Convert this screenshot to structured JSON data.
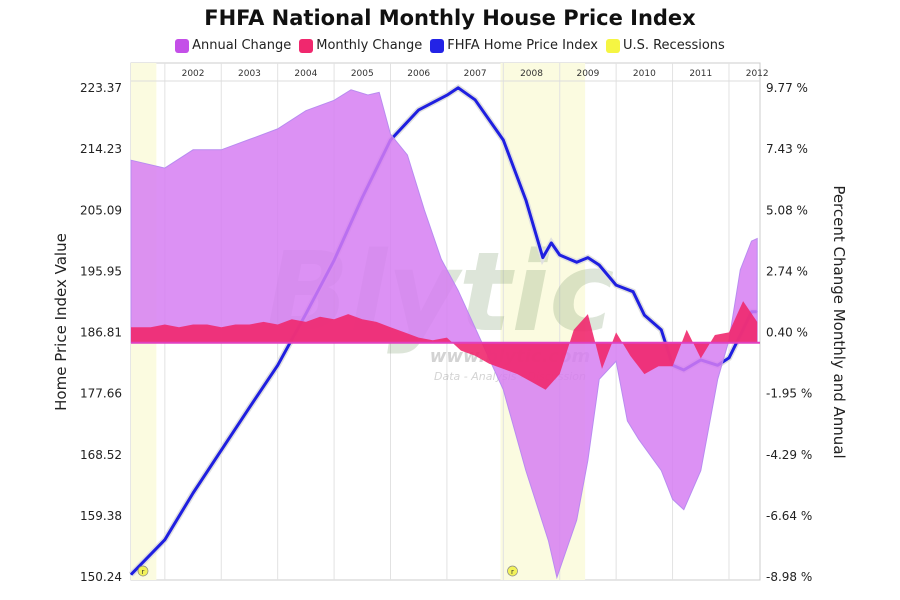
{
  "chart_data": {
    "type": "line",
    "title": "FHFA National Monthly House Price Index",
    "legend": [
      {
        "name": "Annual Change",
        "color": "#c44fe8"
      },
      {
        "name": "Monthly Change",
        "color": "#f0286e"
      },
      {
        "name": "FHFA Home Price Index",
        "color": "#2323e6"
      },
      {
        "name": "U.S. Recessions",
        "color": "#f5f542"
      }
    ],
    "legend_position": "top",
    "x_tick_labels": [
      "2002",
      "2003",
      "2004",
      "2005",
      "2006",
      "2007",
      "2008",
      "2009",
      "2010",
      "2011",
      "2012"
    ],
    "xlim": [
      2001.4,
      2012.55
    ],
    "ylabel_left": "Home Price Index Value",
    "ylabel_right": "Percent Change Monthly and Annual",
    "ylim_left": [
      150.24,
      223.37
    ],
    "ylim_right": [
      -8.98,
      9.77
    ],
    "y_ticks_left": [
      "223.37",
      "214.23",
      "205.09",
      "195.95",
      "186.81",
      "177.66",
      "168.52",
      "159.38",
      "150.24"
    ],
    "y_ticks_right": [
      "9.77 %",
      "7.43 %",
      "5.08 %",
      "2.74 %",
      "0.40 %",
      "-1.95 %",
      "-4.29 %",
      "-6.64 %",
      "-8.98 %"
    ],
    "grid": true,
    "recessions": [
      [
        2001.4,
        2001.85
      ],
      [
        2007.95,
        2009.45
      ]
    ],
    "recession_marker_label": "r",
    "series": [
      {
        "name": "FHFA Home Price Index",
        "axis": "left",
        "type": "line",
        "x": [
          2001.4,
          2002.0,
          2002.5,
          2003.0,
          2003.5,
          2004.0,
          2004.5,
          2005.0,
          2005.5,
          2006.0,
          2006.5,
          2007.0,
          2007.2,
          2007.5,
          2008.0,
          2008.4,
          2008.7,
          2008.85,
          2009.0,
          2009.3,
          2009.5,
          2009.7,
          2010.0,
          2010.3,
          2010.5,
          2010.8,
          2011.0,
          2011.2,
          2011.5,
          2011.8,
          2012.0,
          2012.2,
          2012.4,
          2012.5
        ],
        "y": [
          150.6,
          155.8,
          162.8,
          169.2,
          175.6,
          181.9,
          189.6,
          197.6,
          207.0,
          215.6,
          220.1,
          222.3,
          223.4,
          221.6,
          215.6,
          206.6,
          198.0,
          200.2,
          198.4,
          197.3,
          198.0,
          196.9,
          193.9,
          192.9,
          189.4,
          187.2,
          181.9,
          181.2,
          182.7,
          181.9,
          183.0,
          186.4,
          189.9,
          189.9
        ]
      },
      {
        "name": "Annual Change",
        "axis": "right",
        "type": "area",
        "x": [
          2001.4,
          2002.0,
          2002.5,
          2003.0,
          2003.5,
          2004.0,
          2004.5,
          2005.0,
          2005.3,
          2005.6,
          2005.8,
          2006.0,
          2006.3,
          2006.6,
          2006.9,
          2007.2,
          2007.6,
          2008.0,
          2008.4,
          2008.8,
          2008.95,
          2009.3,
          2009.5,
          2009.7,
          2010.0,
          2010.2,
          2010.4,
          2010.8,
          2011.0,
          2011.2,
          2011.5,
          2011.8,
          2012.0,
          2012.2,
          2012.4,
          2012.5
        ],
        "y": [
          7.0,
          6.7,
          7.4,
          7.4,
          7.8,
          8.2,
          8.9,
          9.3,
          9.7,
          9.5,
          9.6,
          8.0,
          7.2,
          5.1,
          3.2,
          2.0,
          0.1,
          -1.8,
          -4.9,
          -7.6,
          -9.0,
          -6.8,
          -4.5,
          -1.4,
          -0.7,
          -3.0,
          -3.7,
          -4.9,
          -6.0,
          -6.4,
          -4.9,
          -1.4,
          0.1,
          2.8,
          3.9,
          4.0
        ]
      },
      {
        "name": "Monthly Change",
        "axis": "right",
        "type": "area",
        "x": [
          2001.4,
          2001.75,
          2002.0,
          2002.25,
          2002.5,
          2002.75,
          2003.0,
          2003.25,
          2003.5,
          2003.75,
          2004.0,
          2004.25,
          2004.5,
          2004.75,
          2005.0,
          2005.25,
          2005.5,
          2005.75,
          2006.0,
          2006.25,
          2006.5,
          2006.75,
          2007.0,
          2007.25,
          2007.5,
          2007.75,
          2008.0,
          2008.25,
          2008.5,
          2008.75,
          2009.0,
          2009.25,
          2009.5,
          2009.75,
          2010.0,
          2010.25,
          2010.5,
          2010.75,
          2011.0,
          2011.25,
          2011.5,
          2011.75,
          2012.0,
          2012.25,
          2012.5
        ],
        "y": [
          0.6,
          0.6,
          0.7,
          0.6,
          0.7,
          0.7,
          0.6,
          0.7,
          0.7,
          0.8,
          0.7,
          0.9,
          0.8,
          1.0,
          0.9,
          1.1,
          0.9,
          0.8,
          0.6,
          0.4,
          0.2,
          0.1,
          0.2,
          -0.3,
          -0.5,
          -0.8,
          -1.0,
          -1.2,
          -1.5,
          -1.8,
          -1.2,
          0.5,
          1.1,
          -1.0,
          0.4,
          -0.5,
          -1.2,
          -0.9,
          -0.9,
          0.5,
          -0.6,
          0.3,
          0.4,
          1.6,
          0.8
        ]
      }
    ]
  },
  "watermark": {
    "brand": "Blytic",
    "url": "www.blytic.com",
    "tagline": "Data - Analysis - Discussion"
  }
}
